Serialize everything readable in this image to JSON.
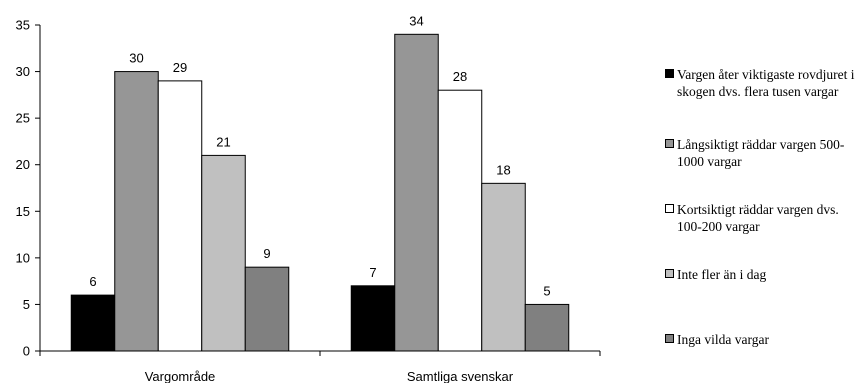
{
  "chart_data": {
    "type": "bar",
    "categories": [
      "Vargområde",
      "Samtliga svenskar"
    ],
    "series": [
      {
        "name": "Vargen åter viktigaste rovdjuret i skogen dvs. flera tusen vargar",
        "values": [
          6,
          7
        ],
        "color": "#000000"
      },
      {
        "name": "Långsiktigt räddar vargen 500-1000 vargar",
        "values": [
          30,
          34
        ],
        "color": "#969696"
      },
      {
        "name": "Kortsiktigt räddar vargen dvs. 100-200 vargar",
        "values": [
          29,
          28
        ],
        "color": "#ffffff"
      },
      {
        "name": "Inte fler än i dag",
        "values": [
          21,
          18
        ],
        "color": "#c0c0c0"
      },
      {
        "name": "Inga vilda vargar",
        "values": [
          9,
          5
        ],
        "color": "#808080"
      }
    ],
    "ylim": [
      0,
      35
    ],
    "yticks": [
      "0",
      "5",
      "10",
      "15",
      "20",
      "25",
      "30",
      "35"
    ],
    "grid": false,
    "legend": "right",
    "title": "",
    "xlabel": "",
    "ylabel": ""
  }
}
